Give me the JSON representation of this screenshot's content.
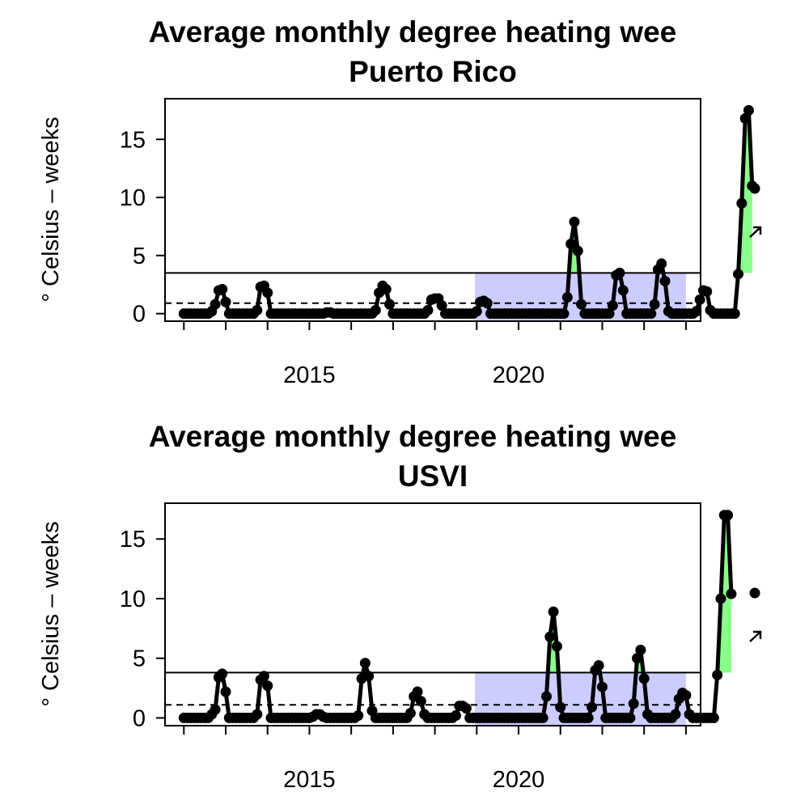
{
  "colors": {
    "recent_band": "#ccccff",
    "above_threshold": "#88ff88",
    "line": "#000000"
  },
  "chart_data": [
    {
      "type": "line",
      "title": "Average monthly degree heating wee",
      "subtitle": "Puerto Rico",
      "ylabel": "° Celsius – weeks",
      "xlim": [
        2011.55,
        2024.35
      ],
      "ylim": [
        -0.65,
        18.5
      ],
      "x_ticks": [
        2012,
        2013,
        2014,
        2015,
        2016,
        2017,
        2018,
        2019,
        2020,
        2021,
        2022,
        2023,
        2024
      ],
      "x_tick_labels": [
        {
          "x": 2015,
          "label": "2015"
        },
        {
          "x": 2020,
          "label": "2020"
        }
      ],
      "y_ticks": [
        0,
        5,
        10,
        15
      ],
      "y_tick_labels": [
        "0",
        "5",
        "10",
        "15"
      ],
      "mean_line": 3.5,
      "dashed_line": 0.9,
      "recent_window": [
        2018.958,
        2024.0
      ],
      "legend": [
        "point-marker",
        "trend-arrow"
      ],
      "series": [
        {
          "x_start": 2012.0,
          "step": 0.08333,
          "values": [
            0,
            0,
            0,
            0,
            0,
            0,
            0,
            0,
            0.2,
            0.8,
            2.0,
            2.1,
            1.0,
            0,
            0,
            0,
            0,
            0,
            0,
            0,
            0,
            0.3,
            2.3,
            2.4,
            1.8,
            0,
            0,
            0,
            0,
            0,
            0,
            0,
            0,
            0,
            0,
            0,
            0,
            0,
            0,
            0,
            0,
            0.1,
            0.1,
            0,
            0,
            0,
            0,
            0,
            0,
            0,
            0,
            0,
            0,
            0,
            0,
            0.3,
            1.8,
            2.4,
            2.1,
            0.8,
            0,
            0,
            0,
            0,
            0,
            0,
            0,
            0,
            0,
            0,
            0.3,
            1.2,
            1.3,
            1.3,
            0.7,
            0,
            0,
            0,
            0,
            0,
            0,
            0,
            0,
            0,
            0.2,
            1.0,
            1.1,
            0.9,
            0,
            0,
            0,
            0,
            0,
            0,
            0,
            0,
            0,
            0,
            0,
            0,
            0,
            0,
            0,
            0,
            0,
            0,
            0,
            0,
            0,
            0,
            1.4,
            6.0,
            7.9,
            5.4,
            0.8,
            0,
            0,
            0,
            0,
            0,
            0,
            0,
            0,
            0.7,
            3.3,
            3.5,
            2.0,
            0,
            0,
            0,
            0,
            0,
            0,
            0,
            0,
            0.8,
            3.8,
            4.3,
            2.8,
            0.2,
            0,
            0,
            0,
            0,
            0,
            0,
            0,
            0.2,
            1.2,
            2.0,
            1.9,
            0.3,
            0,
            0,
            0,
            0,
            0,
            0,
            0,
            3.4,
            9.5,
            16.8,
            17.5,
            11.0
          ]
        }
      ]
    },
    {
      "type": "line",
      "title": "Average monthly degree heating wee",
      "subtitle": "USVI",
      "ylabel": "° Celsius – weeks",
      "xlim": [
        2011.55,
        2024.35
      ],
      "ylim": [
        -0.65,
        18.0
      ],
      "x_ticks": [
        2012,
        2013,
        2014,
        2015,
        2016,
        2017,
        2018,
        2019,
        2020,
        2021,
        2022,
        2023,
        2024
      ],
      "x_tick_labels": [
        {
          "x": 2015,
          "label": "2015"
        },
        {
          "x": 2020,
          "label": "2020"
        }
      ],
      "y_ticks": [
        0,
        5,
        10,
        15
      ],
      "y_tick_labels": [
        "0",
        "5",
        "10",
        "15"
      ],
      "mean_line": 3.8,
      "dashed_line": 1.1,
      "recent_window": [
        2018.958,
        2024.0
      ],
      "legend": [
        "point-marker",
        "trend-arrow"
      ],
      "series": [
        {
          "x_start": 2012.0,
          "step": 0.08333,
          "values": [
            0,
            0,
            0,
            0,
            0,
            0,
            0,
            0,
            0.3,
            0.7,
            3.4,
            3.7,
            2.2,
            0,
            0,
            0,
            0,
            0,
            0,
            0,
            0,
            0.3,
            3.2,
            3.5,
            2.7,
            0,
            0,
            0,
            0,
            0,
            0,
            0,
            0,
            0,
            0,
            0,
            0,
            0.1,
            0.3,
            0.3,
            0.1,
            0,
            0,
            0,
            0,
            0,
            0,
            0,
            0,
            0,
            0.2,
            3.3,
            4.6,
            3.5,
            0.6,
            0,
            0,
            0,
            0,
            0,
            0,
            0,
            0,
            0,
            0,
            0.4,
            1.8,
            2.2,
            1.4,
            0.3,
            0,
            0,
            0,
            0,
            0,
            0,
            0,
            0,
            0.2,
            1.0,
            1.0,
            0.8,
            0,
            0,
            0,
            0,
            0,
            0,
            0,
            0,
            0,
            0,
            0,
            0,
            0,
            0,
            0,
            0,
            0,
            0,
            0,
            0,
            0,
            0,
            1.8,
            6.8,
            8.9,
            6.0,
            0.9,
            0,
            0,
            0,
            0,
            0,
            0,
            0,
            0,
            0.9,
            4.0,
            4.4,
            2.6,
            0,
            0,
            0,
            0,
            0,
            0,
            0,
            0,
            1.2,
            5.0,
            5.7,
            3.3,
            0.3,
            0,
            0,
            0,
            0,
            0,
            0,
            0,
            0.3,
            1.6,
            2.1,
            1.9,
            0.3,
            0,
            0,
            0,
            0,
            0,
            0,
            0,
            3.6,
            10.0,
            17.0,
            17.0,
            10.4
          ]
        }
      ]
    }
  ]
}
